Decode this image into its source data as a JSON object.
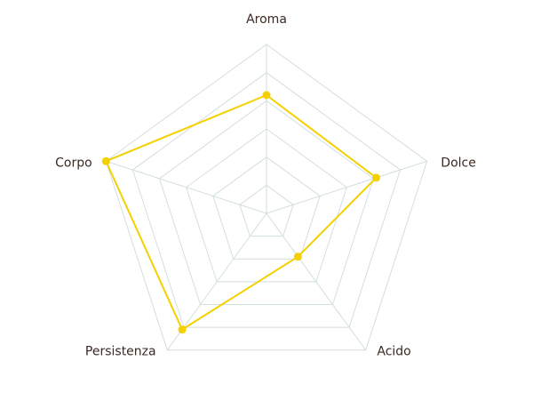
{
  "chart_data": {
    "type": "radar",
    "categories": [
      "Aroma",
      "Dolce",
      "Acido",
      "Persistenza",
      "Corpo"
    ],
    "series": [
      {
        "color": "#f5d000",
        "values": [
          4.2,
          4.1,
          1.9,
          5.1,
          6
        ]
      }
    ],
    "rlim": [
      0,
      6
    ],
    "rticks": [
      1,
      2,
      3,
      4,
      5,
      6
    ],
    "grid": true,
    "grid_color": "#d3dede"
  }
}
